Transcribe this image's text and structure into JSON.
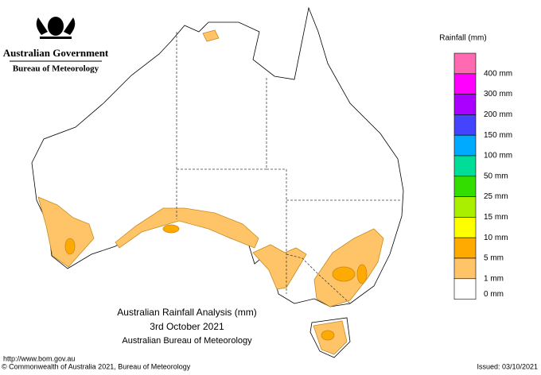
{
  "header": {
    "title": "Australian Government",
    "subtitle": "Bureau of Meteorology"
  },
  "map": {
    "title": "Australian Rainfall Analysis (mm)",
    "date": "3rd October 2021",
    "source": "Australian Bureau of Meteorology"
  },
  "legend": {
    "title": "Rainfall (mm)",
    "colors": [
      "#ff6ab0",
      "#ff00ff",
      "#aa00ff",
      "#4444ff",
      "#00aaff",
      "#00dd99",
      "#33dd00",
      "#aaee00",
      "#ffff00",
      "#ffaa00",
      "#ffc468",
      "#ffffff"
    ],
    "labels": [
      "400 mm",
      "300 mm",
      "200 mm",
      "150 mm",
      "100 mm",
      "50 mm",
      "25 mm",
      "15 mm",
      "10 mm",
      "5 mm",
      "1 mm",
      "0 mm"
    ]
  },
  "footer": {
    "url": "http://www.bom.gov.au",
    "copyright": "© Commonwealth of Australia 2021, Bureau of Meteorology",
    "issued": "Issued: 03/10/2021"
  }
}
